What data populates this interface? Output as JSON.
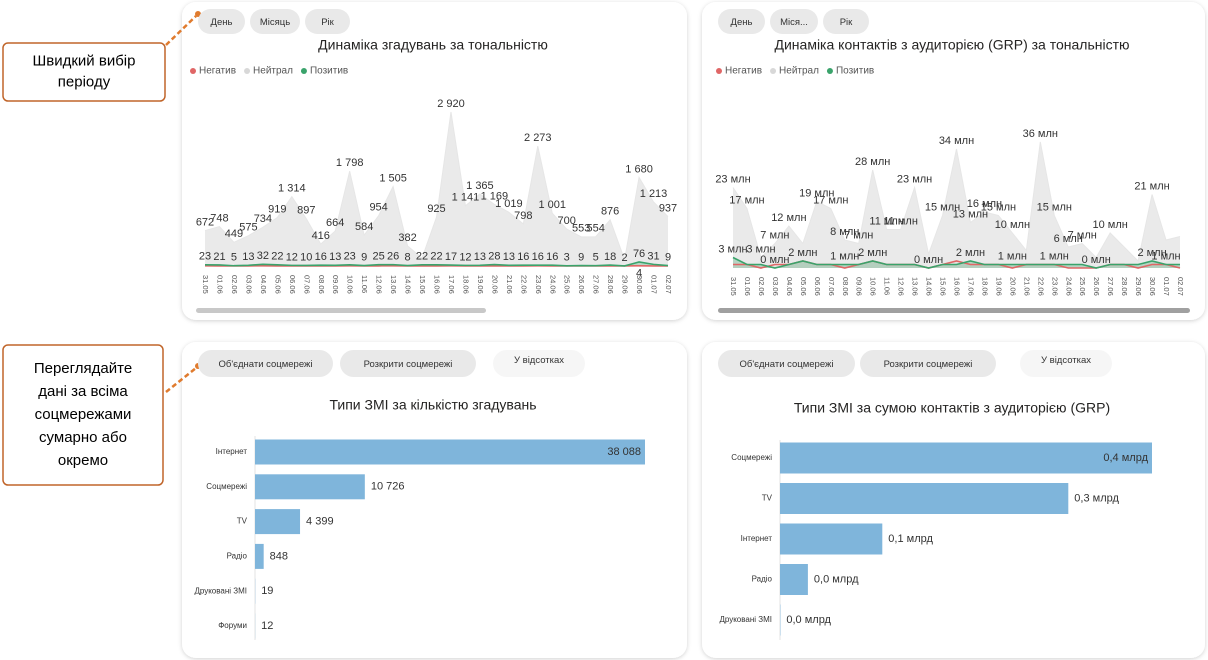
{
  "callouts": [
    {
      "lines": [
        "Швидкий вибір",
        "періоду"
      ]
    },
    {
      "lines": [
        "Переглядайте",
        "дані за всіма",
        "соцмережами",
        "сумарно або",
        "окремо"
      ]
    }
  ],
  "chart_data": [
    {
      "type": "area",
      "title": "Динаміка згадувань за тональністю",
      "buttons": [
        "День",
        "Місяць",
        "Рік"
      ],
      "categories": [
        "31.05",
        "01.06",
        "02.06",
        "03.06",
        "04.06",
        "05.06",
        "06.06",
        "07.06",
        "08.06",
        "09.06",
        "10.06",
        "11.06",
        "12.06",
        "13.06",
        "14.06",
        "15.06",
        "16.06",
        "17.06",
        "18.06",
        "19.06",
        "20.06",
        "21.06",
        "22.06",
        "23.06",
        "24.06",
        "25.06",
        "26.06",
        "27.06",
        "28.06",
        "29.06",
        "30.06",
        "01.07",
        "02.07"
      ],
      "series": [
        {
          "name": "Негатив",
          "color": "#e06666",
          "values": [
            3,
            2,
            1,
            2,
            3,
            2,
            2,
            1,
            2,
            2,
            3,
            2,
            2,
            3,
            1,
            1,
            2,
            3,
            2,
            2,
            2,
            2,
            1,
            3,
            2,
            1,
            1,
            1,
            2,
            1,
            4,
            2,
            1
          ],
          "value_labels": [
            null,
            null,
            null,
            null,
            null,
            null,
            null,
            null,
            null,
            null,
            null,
            null,
            null,
            null,
            null,
            null,
            null,
            null,
            null,
            null,
            null,
            null,
            null,
            null,
            null,
            null,
            null,
            null,
            null,
            null,
            "4",
            null,
            null
          ]
        },
        {
          "name": "Нейтрал",
          "color": "#e6e6e6",
          "values": [
            672,
            748,
            449,
            575,
            734,
            919,
            1314,
            897,
            416,
            664,
            1798,
            584,
            954,
            1505,
            382,
            150,
            925,
            2920,
            1141,
            1365,
            1169,
            1019,
            798,
            2273,
            1001,
            700,
            553,
            554,
            876,
            120,
            1680,
            1213,
            937
          ],
          "value_labels": [
            "672",
            "748",
            "449",
            "575",
            "734",
            "919",
            "1 314",
            "897",
            "416",
            "664",
            "1 798",
            "584",
            "954",
            "1 505",
            "382",
            null,
            "925",
            "2 920",
            "1 141",
            "1 365",
            "1 169",
            "1 019",
            "798",
            "2 273",
            "1 001",
            "700",
            "553",
            "554",
            "876",
            null,
            "1 680",
            "1 213",
            "937"
          ]
        },
        {
          "name": "Позитив",
          "color": "#3aa36b",
          "values": [
            23,
            21,
            5,
            13,
            32,
            22,
            12,
            10,
            16,
            13,
            23,
            9,
            25,
            26,
            8,
            22,
            22,
            17,
            12,
            13,
            28,
            13,
            16,
            16,
            16,
            3,
            9,
            5,
            18,
            2,
            76,
            31,
            9
          ]
        }
      ]
    },
    {
      "type": "area",
      "title": "Динаміка контактів з аудиторією (GRP) за тональністю",
      "buttons": [
        "День",
        "Міся...",
        "Рік"
      ],
      "categories": [
        "31.05",
        "01.06",
        "02.06",
        "03.06",
        "04.06",
        "05.06",
        "06.06",
        "07.06",
        "08.06",
        "09.06",
        "10.06",
        "11.06",
        "12.06",
        "13.06",
        "14.06",
        "15.06",
        "16.06",
        "17.06",
        "18.06",
        "19.06",
        "20.06",
        "21.06",
        "22.06",
        "23.06",
        "24.06",
        "25.06",
        "26.06",
        "27.06",
        "28.06",
        "29.06",
        "30.06",
        "01.07",
        "02.07"
      ],
      "series": [
        {
          "name": "Негатив",
          "color": "#e06666",
          "data_labels": false,
          "values": [
            1,
            1,
            0,
            1,
            1,
            2,
            1,
            1,
            0,
            1,
            2,
            1,
            1,
            1,
            0,
            1,
            2,
            1,
            1,
            1,
            0,
            1,
            1,
            1,
            0,
            0,
            0,
            1,
            1,
            0,
            1,
            1,
            0
          ]
        },
        {
          "name": "Нейтрал",
          "color": "#e6e6e6",
          "values": [
            23,
            17,
            3,
            7,
            12,
            7,
            19,
            17,
            8,
            7,
            28,
            11,
            11,
            23,
            4,
            15,
            34,
            13,
            16,
            15,
            10,
            5,
            36,
            15,
            6,
            7,
            3,
            10,
            6,
            2,
            21,
            8,
            9
          ],
          "value_labels": [
            "23 млн",
            "17 млн",
            "3 млн",
            "7 млн",
            "12 млн",
            null,
            "19 млн",
            "17 млн",
            "8 млн",
            "7 млн",
            "28 млн",
            "11 млн",
            "11 млн",
            "23 млн",
            null,
            "15 млн",
            "34 млн",
            "13 млн",
            "16 млн",
            "15 млн",
            "10 млн",
            null,
            "36 млн",
            "15 млн",
            "6 млн",
            "7 млн",
            null,
            "10 млн",
            null,
            null,
            "21 млн",
            null,
            null
          ]
        },
        {
          "name": "Позитив",
          "color": "#3aa36b",
          "values": [
            3,
            1,
            1,
            0,
            1,
            2,
            1,
            1,
            1,
            1,
            2,
            1,
            1,
            1,
            0,
            1,
            1,
            2,
            1,
            1,
            1,
            1,
            1,
            1,
            1,
            1,
            0,
            1,
            1,
            1,
            2,
            1,
            1
          ],
          "value_labels": [
            "3 млн",
            null,
            null,
            "0 млн",
            null,
            "2 млн",
            null,
            null,
            "1 млн",
            null,
            "2 млн",
            null,
            null,
            null,
            "0 млн",
            null,
            null,
            "2 млн",
            null,
            null,
            "1 млн",
            null,
            null,
            "1 млн",
            null,
            null,
            "0 млн",
            null,
            null,
            null,
            "2 млн",
            "1 млн",
            null
          ]
        }
      ]
    },
    {
      "type": "bar",
      "title": "Типи ЗМІ за кількістю згадувань",
      "buttons": [
        "Об'єднати соцмережі",
        "Розкрити соцмережі",
        "У відсотках"
      ],
      "categories": [
        "Інтернет",
        "Соцмережі",
        "TV",
        "Радіо",
        "Друковані ЗМІ",
        "Форуми"
      ],
      "values": [
        38088,
        10726,
        4399,
        848,
        19,
        12
      ],
      "value_labels": [
        "38 088",
        "10 726",
        "4 399",
        "848",
        "19",
        "12"
      ],
      "color": "#7fb5db"
    },
    {
      "type": "bar",
      "title": "Типи ЗМІ за сумою контактів з аудиторією (GRP)",
      "buttons": [
        "Об'єднати соцмережі",
        "Розкрити соцмережі",
        "У відсотках"
      ],
      "categories": [
        "Соцмережі",
        "TV",
        "Інтернет",
        "Радіо",
        "Друковані ЗМІ"
      ],
      "values": [
        0.4,
        0.31,
        0.11,
        0.03,
        0.0004
      ],
      "value_labels": [
        "0,4 млрд",
        "0,3 млрд",
        "0,1 млрд",
        "0,0 млрд",
        "0,0 млрд"
      ],
      "color": "#7fb5db"
    }
  ]
}
